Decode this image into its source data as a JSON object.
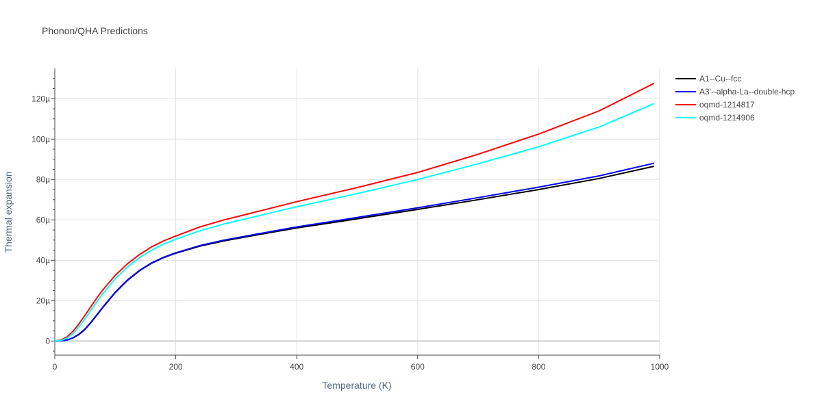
{
  "chart_data": {
    "type": "line",
    "title": "Phonon/QHA Predictions",
    "xlabel": "Temperature (K)",
    "ylabel": "Thermal expansion",
    "xlim": [
      0,
      1000
    ],
    "ylim": [
      -7,
      135
    ],
    "x_ticks": [
      0,
      200,
      400,
      600,
      800,
      1000
    ],
    "x_tick_labels": [
      "0",
      "200",
      "400",
      "600",
      "800",
      "1000"
    ],
    "y_ticks": [
      0,
      20,
      40,
      60,
      80,
      100,
      120
    ],
    "y_tick_labels": [
      "0",
      "20µ",
      "40µ",
      "60µ",
      "80µ",
      "100µ",
      "120µ"
    ],
    "y_minor_ticks": [
      -5,
      5,
      10,
      15,
      25,
      30,
      35,
      45,
      50,
      55,
      65,
      70,
      75,
      85,
      90,
      95,
      105,
      110,
      115,
      125,
      130
    ],
    "grid": true,
    "legend_position": "top-right",
    "series": [
      {
        "name": "A1--Cu--fcc",
        "color": "#000000",
        "x": [
          0,
          10,
          20,
          30,
          40,
          50,
          60,
          70,
          80,
          100,
          120,
          140,
          160,
          180,
          200,
          240,
          280,
          320,
          400,
          500,
          600,
          700,
          800,
          900,
          990
        ],
        "y": [
          0,
          0.1,
          0.5,
          1.5,
          3.2,
          5.8,
          9.2,
          13.0,
          16.8,
          24.0,
          30.0,
          34.8,
          38.5,
          41.3,
          43.5,
          47.0,
          49.6,
          51.8,
          56.0,
          60.5,
          65.2,
          70.0,
          75.0,
          80.5,
          86.5
        ]
      },
      {
        "name": "A3'--alpha-La--double-hcp",
        "color": "#0000ff",
        "x": [
          0,
          10,
          20,
          30,
          40,
          50,
          60,
          70,
          80,
          100,
          120,
          140,
          160,
          180,
          200,
          240,
          280,
          320,
          400,
          500,
          600,
          700,
          800,
          900,
          990
        ],
        "y": [
          0,
          0.1,
          0.5,
          1.6,
          3.4,
          6.0,
          9.4,
          13.2,
          17.0,
          24.2,
          30.2,
          35.0,
          38.7,
          41.5,
          43.7,
          47.3,
          50.0,
          52.2,
          56.5,
          61.2,
          66.0,
          71.0,
          76.2,
          81.8,
          88.0
        ]
      },
      {
        "name": "oqmd-1214817",
        "color": "#ff0000",
        "x": [
          0,
          10,
          20,
          30,
          40,
          50,
          60,
          70,
          80,
          100,
          120,
          140,
          160,
          180,
          200,
          240,
          280,
          320,
          400,
          500,
          600,
          700,
          800,
          900,
          990
        ],
        "y": [
          0,
          0.5,
          2.0,
          4.8,
          8.5,
          12.8,
          17.2,
          21.5,
          25.5,
          32.5,
          38.2,
          42.8,
          46.6,
          49.6,
          52.0,
          56.5,
          60.0,
          63.0,
          69.0,
          76.0,
          83.5,
          92.5,
          102.5,
          114.0,
          127.5
        ]
      },
      {
        "name": "oqmd-1214906",
        "color": "#00ffff",
        "x": [
          0,
          10,
          20,
          30,
          40,
          50,
          60,
          70,
          80,
          100,
          120,
          140,
          160,
          180,
          200,
          240,
          280,
          320,
          400,
          500,
          600,
          700,
          800,
          900,
          990
        ],
        "y": [
          0,
          0.3,
          1.4,
          3.6,
          7.0,
          11.0,
          15.4,
          19.6,
          23.6,
          30.8,
          36.6,
          41.3,
          45.0,
          48.0,
          50.4,
          54.6,
          58.0,
          60.8,
          66.5,
          73.0,
          80.0,
          87.8,
          96.2,
          106.0,
          117.5
        ]
      }
    ]
  }
}
